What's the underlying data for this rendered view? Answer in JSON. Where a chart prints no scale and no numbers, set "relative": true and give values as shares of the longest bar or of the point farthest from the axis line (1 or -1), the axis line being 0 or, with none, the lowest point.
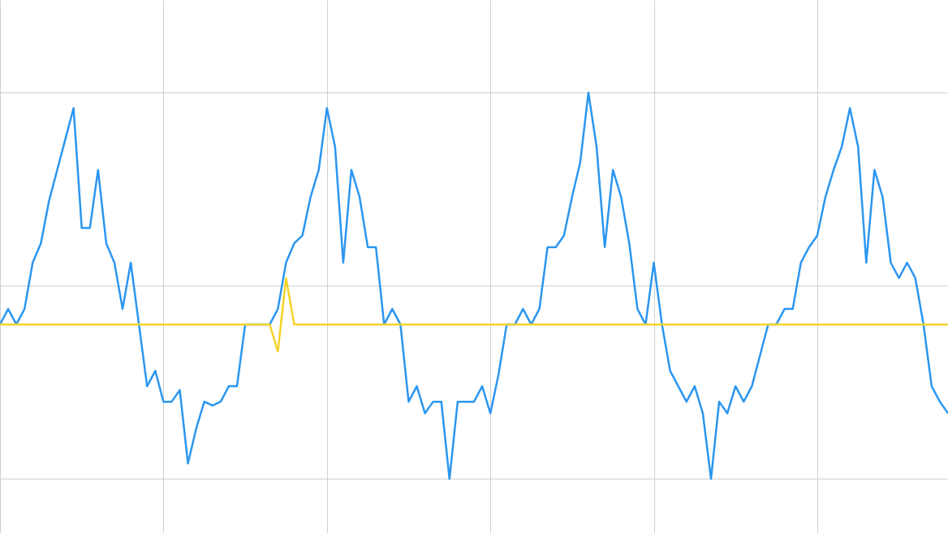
{
  "chart_data": {
    "type": "line",
    "relative": true,
    "grid": true,
    "categories": [
      null,
      null,
      null,
      null,
      null,
      null,
      null,
      null,
      null,
      null,
      null,
      null,
      null,
      null,
      null,
      null,
      null,
      null,
      null,
      null,
      null,
      null,
      null,
      null,
      null,
      null,
      null,
      null,
      null,
      null,
      null,
      null,
      null,
      null,
      null,
      null,
      null,
      null,
      null,
      null,
      null,
      null,
      null,
      null,
      null,
      null,
      null,
      null,
      null,
      null,
      null,
      null,
      null,
      null,
      null,
      null,
      null,
      null,
      null,
      null,
      null,
      null,
      null,
      null,
      null,
      null,
      null,
      null,
      null,
      null,
      null,
      null,
      null,
      null,
      null,
      null,
      null,
      null,
      null,
      null,
      null,
      null,
      null,
      null,
      null,
      null,
      null,
      null,
      null,
      null,
      null,
      null,
      null,
      null,
      null,
      null,
      null,
      null,
      null,
      null,
      null,
      null,
      null,
      null,
      null,
      null,
      null,
      null,
      null,
      null,
      null,
      null,
      null,
      null,
      null,
      null,
      null
    ],
    "series": [
      {
        "color": "#2b96f0",
        "values": [
          0.4,
          0.44,
          0.4,
          0.44,
          0.56,
          0.61,
          0.72,
          0.8,
          0.88,
          0.96,
          0.65,
          0.65,
          0.8,
          0.61,
          0.56,
          0.44,
          0.56,
          0.4,
          0.24,
          0.28,
          0.2,
          0.2,
          0.23,
          0.04,
          0.13,
          0.2,
          0.19,
          0.2,
          0.24,
          0.24,
          0.4,
          0.4,
          0.4,
          0.4,
          0.44,
          0.56,
          0.61,
          0.63,
          0.73,
          0.8,
          0.96,
          0.86,
          0.56,
          0.8,
          0.73,
          0.6,
          0.6,
          0.4,
          0.44,
          0.4,
          0.2,
          0.24,
          0.17,
          0.2,
          0.2,
          0.0,
          0.2,
          0.2,
          0.2,
          0.24,
          0.17,
          0.27,
          0.4,
          0.4,
          0.44,
          0.4,
          0.44,
          0.6,
          0.6,
          0.63,
          0.73,
          0.82,
          1.0,
          0.86,
          0.6,
          0.8,
          0.73,
          0.61,
          0.44,
          0.4,
          0.56,
          0.4,
          0.28,
          0.24,
          0.2,
          0.24,
          0.17,
          0.0,
          0.2,
          0.17,
          0.24,
          0.2,
          0.24,
          0.32,
          0.4,
          0.4,
          0.44,
          0.44,
          0.56,
          0.6,
          0.63,
          0.73,
          0.8,
          0.86,
          0.96,
          0.86,
          0.56,
          0.8,
          0.73,
          0.56,
          0.52,
          0.56,
          0.52,
          0.4,
          0.24,
          0.2,
          0.17
        ]
      },
      {
        "color": "#f5d327",
        "values": [
          0.4,
          0.4,
          0.4,
          0.4,
          0.4,
          0.4,
          0.4,
          0.4,
          0.4,
          0.4,
          0.4,
          0.4,
          0.4,
          0.4,
          0.4,
          0.4,
          0.4,
          0.4,
          0.4,
          0.4,
          0.4,
          0.4,
          0.4,
          0.4,
          0.4,
          0.4,
          0.4,
          0.4,
          0.4,
          0.4,
          0.4,
          0.4,
          0.4,
          0.4,
          0.33,
          0.52,
          0.4,
          0.4,
          0.4,
          0.4,
          0.4,
          0.4,
          0.4,
          0.4,
          0.4,
          0.4,
          0.4,
          0.4,
          0.4,
          0.4,
          0.4,
          0.4,
          0.4,
          0.4,
          0.4,
          0.4,
          0.4,
          0.4,
          0.4,
          0.4,
          0.4,
          0.4,
          0.4,
          0.4,
          0.4,
          0.4,
          0.4,
          0.4,
          0.4,
          0.4,
          0.4,
          0.4,
          0.4,
          0.4,
          0.4,
          0.4,
          0.4,
          0.4,
          0.4,
          0.4,
          0.4,
          0.4,
          0.4,
          0.4,
          0.4,
          0.4,
          0.4,
          0.4,
          0.4,
          0.4,
          0.4,
          0.4,
          0.4,
          0.4,
          0.4,
          0.4,
          0.4,
          0.4,
          0.4,
          0.4,
          0.4,
          0.4,
          0.4,
          0.4,
          0.4,
          0.4,
          0.4,
          0.4,
          0.4,
          0.4,
          0.4,
          0.4,
          0.4,
          0.4,
          0.4,
          0.4,
          0.4
        ]
      }
    ]
  }
}
